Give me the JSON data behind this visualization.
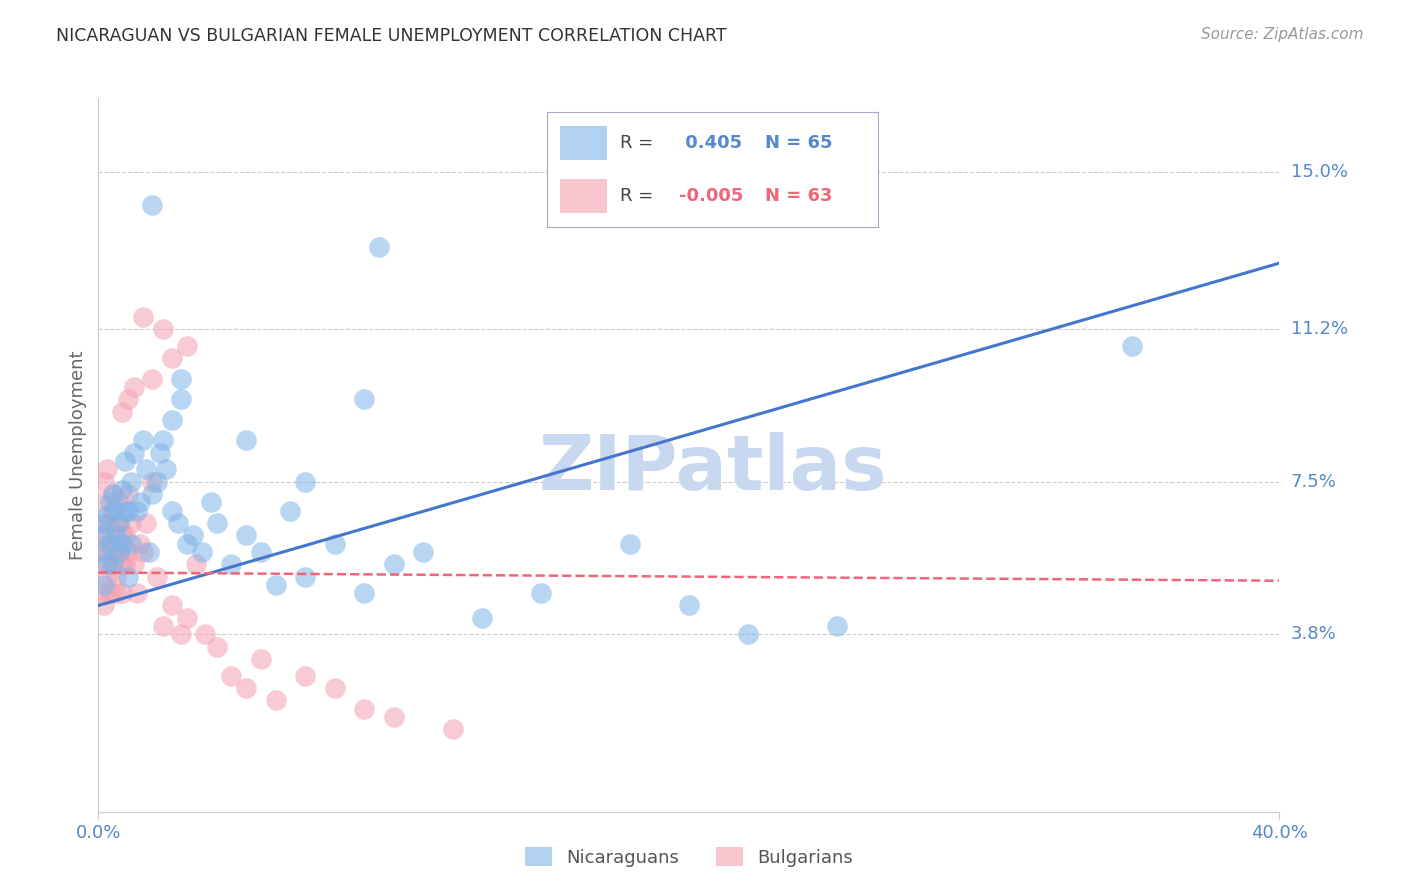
{
  "title": "NICARAGUAN VS BULGARIAN FEMALE UNEMPLOYMENT CORRELATION CHART",
  "source": "Source: ZipAtlas.com",
  "ylabel": "Female Unemployment",
  "yticks": [
    0.038,
    0.075,
    0.112,
    0.15
  ],
  "ytick_labels": [
    "3.8%",
    "7.5%",
    "11.2%",
    "15.0%"
  ],
  "xlim": [
    0.0,
    0.4
  ],
  "ylim": [
    -0.005,
    0.168
  ],
  "nicaraguan_R": 0.405,
  "nicaraguan_N": 65,
  "bulgarian_R": -0.005,
  "bulgarian_N": 63,
  "blue_color": "#7EB3E8",
  "pink_color": "#F4A0B0",
  "blue_line_color": "#4477CC",
  "pink_line_color": "#EE6677",
  "watermark": "ZIPatlas",
  "watermark_color": "#C8D8F0",
  "background_color": "#FFFFFF",
  "grid_color": "#CCCCCC",
  "title_color": "#333333",
  "axis_label_color": "#5588CC",
  "legend_label_blue": "Nicaraguans",
  "legend_label_pink": "Bulgarians",
  "blue_line_x0": 0.0,
  "blue_line_y0": 0.045,
  "blue_line_x1": 0.4,
  "blue_line_y1": 0.128,
  "pink_line_x0": 0.0,
  "pink_line_y0": 0.053,
  "pink_line_x1": 0.4,
  "pink_line_y1": 0.051,
  "blue_scatter_x": [
    0.001,
    0.001,
    0.002,
    0.002,
    0.003,
    0.003,
    0.004,
    0.004,
    0.005,
    0.005,
    0.006,
    0.006,
    0.007,
    0.007,
    0.008,
    0.008,
    0.009,
    0.009,
    0.01,
    0.01,
    0.011,
    0.011,
    0.012,
    0.013,
    0.014,
    0.015,
    0.016,
    0.017,
    0.018,
    0.02,
    0.021,
    0.022,
    0.023,
    0.025,
    0.027,
    0.028,
    0.03,
    0.032,
    0.035,
    0.038,
    0.04,
    0.045,
    0.05,
    0.055,
    0.06,
    0.065,
    0.07,
    0.08,
    0.09,
    0.1,
    0.11,
    0.13,
    0.15,
    0.18,
    0.2,
    0.22,
    0.25,
    0.05,
    0.025,
    0.07,
    0.028,
    0.09,
    0.35,
    0.095,
    0.018
  ],
  "blue_scatter_y": [
    0.058,
    0.065,
    0.05,
    0.062,
    0.055,
    0.067,
    0.06,
    0.07,
    0.055,
    0.072,
    0.062,
    0.068,
    0.058,
    0.065,
    0.073,
    0.06,
    0.068,
    0.08,
    0.052,
    0.068,
    0.06,
    0.075,
    0.082,
    0.068,
    0.07,
    0.085,
    0.078,
    0.058,
    0.072,
    0.075,
    0.082,
    0.085,
    0.078,
    0.068,
    0.065,
    0.095,
    0.06,
    0.062,
    0.058,
    0.07,
    0.065,
    0.055,
    0.062,
    0.058,
    0.05,
    0.068,
    0.052,
    0.06,
    0.048,
    0.055,
    0.058,
    0.042,
    0.048,
    0.06,
    0.045,
    0.038,
    0.04,
    0.085,
    0.09,
    0.075,
    0.1,
    0.095,
    0.108,
    0.132,
    0.142
  ],
  "pink_scatter_x": [
    0.001,
    0.001,
    0.001,
    0.002,
    0.002,
    0.002,
    0.002,
    0.003,
    0.003,
    0.003,
    0.003,
    0.004,
    0.004,
    0.004,
    0.005,
    0.005,
    0.005,
    0.005,
    0.006,
    0.006,
    0.006,
    0.007,
    0.007,
    0.007,
    0.008,
    0.008,
    0.008,
    0.009,
    0.009,
    0.01,
    0.01,
    0.011,
    0.012,
    0.013,
    0.014,
    0.015,
    0.016,
    0.018,
    0.02,
    0.022,
    0.025,
    0.028,
    0.03,
    0.033,
    0.036,
    0.04,
    0.045,
    0.05,
    0.055,
    0.06,
    0.07,
    0.08,
    0.09,
    0.1,
    0.12,
    0.018,
    0.022,
    0.03,
    0.012,
    0.025,
    0.015,
    0.01,
    0.008
  ],
  "pink_scatter_y": [
    0.055,
    0.07,
    0.048,
    0.075,
    0.062,
    0.058,
    0.045,
    0.065,
    0.052,
    0.06,
    0.078,
    0.055,
    0.048,
    0.065,
    0.072,
    0.058,
    0.068,
    0.055,
    0.06,
    0.052,
    0.048,
    0.065,
    0.058,
    0.07,
    0.062,
    0.055,
    0.048,
    0.062,
    0.055,
    0.058,
    0.072,
    0.065,
    0.055,
    0.048,
    0.06,
    0.058,
    0.065,
    0.075,
    0.052,
    0.04,
    0.045,
    0.038,
    0.042,
    0.055,
    0.038,
    0.035,
    0.028,
    0.025,
    0.032,
    0.022,
    0.028,
    0.025,
    0.02,
    0.018,
    0.015,
    0.1,
    0.112,
    0.108,
    0.098,
    0.105,
    0.115,
    0.095,
    0.092
  ]
}
